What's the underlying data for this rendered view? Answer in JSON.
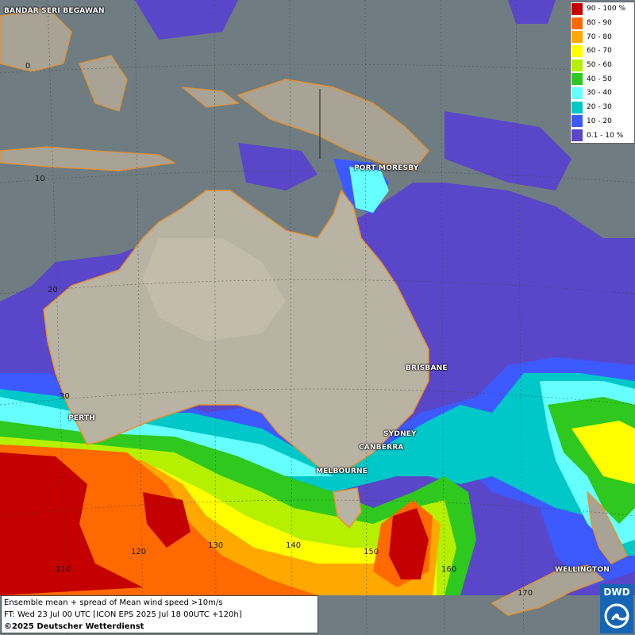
{
  "map": {
    "cities": [
      {
        "id": "bandar",
        "label": "BANDAR SERI BEGAWAN"
      },
      {
        "id": "port-moresby",
        "label": "PORT MORESBY"
      },
      {
        "id": "brisbane",
        "label": "BRISBANE"
      },
      {
        "id": "perth",
        "label": "PERTH"
      },
      {
        "id": "sydney",
        "label": "SYDNEY"
      },
      {
        "id": "canberra",
        "label": "CANBERRA"
      },
      {
        "id": "melbourne",
        "label": "MELBOURNE"
      },
      {
        "id": "wellington",
        "label": "WELLINGTON"
      }
    ],
    "lat_labels": [
      "0",
      "10",
      "20",
      "30"
    ],
    "lon_labels": [
      "110",
      "120",
      "130",
      "140",
      "150",
      "160",
      "170"
    ]
  },
  "legend": {
    "entries": [
      {
        "label": "90 - 100 %",
        "color": "#c40000"
      },
      {
        "label": "80 - 90",
        "color": "#ff6a00"
      },
      {
        "label": "70 - 80",
        "color": "#ffa800"
      },
      {
        "label": "60 - 70",
        "color": "#ffff00"
      },
      {
        "label": "50 - 60",
        "color": "#b4f000"
      },
      {
        "label": "40 - 50",
        "color": "#2ec81e"
      },
      {
        "label": "30 - 40",
        "color": "#66ffff"
      },
      {
        "label": "20 - 30",
        "color": "#00c8c8"
      },
      {
        "label": "10 - 20",
        "color": "#3c5aff"
      },
      {
        "label": "0.1 - 10 %",
        "color": "#5a46c8"
      }
    ]
  },
  "info": {
    "line1": "Ensemble mean + spread of Mean wind speed >10m/s",
    "line2": "FT: Wed 23 Jul 00 UTC [ICON EPS 2025 Jul 18 00UTC +120h]",
    "line3": "©2025 Deutscher Wetterdienst"
  },
  "logo": {
    "text": "DWD"
  }
}
